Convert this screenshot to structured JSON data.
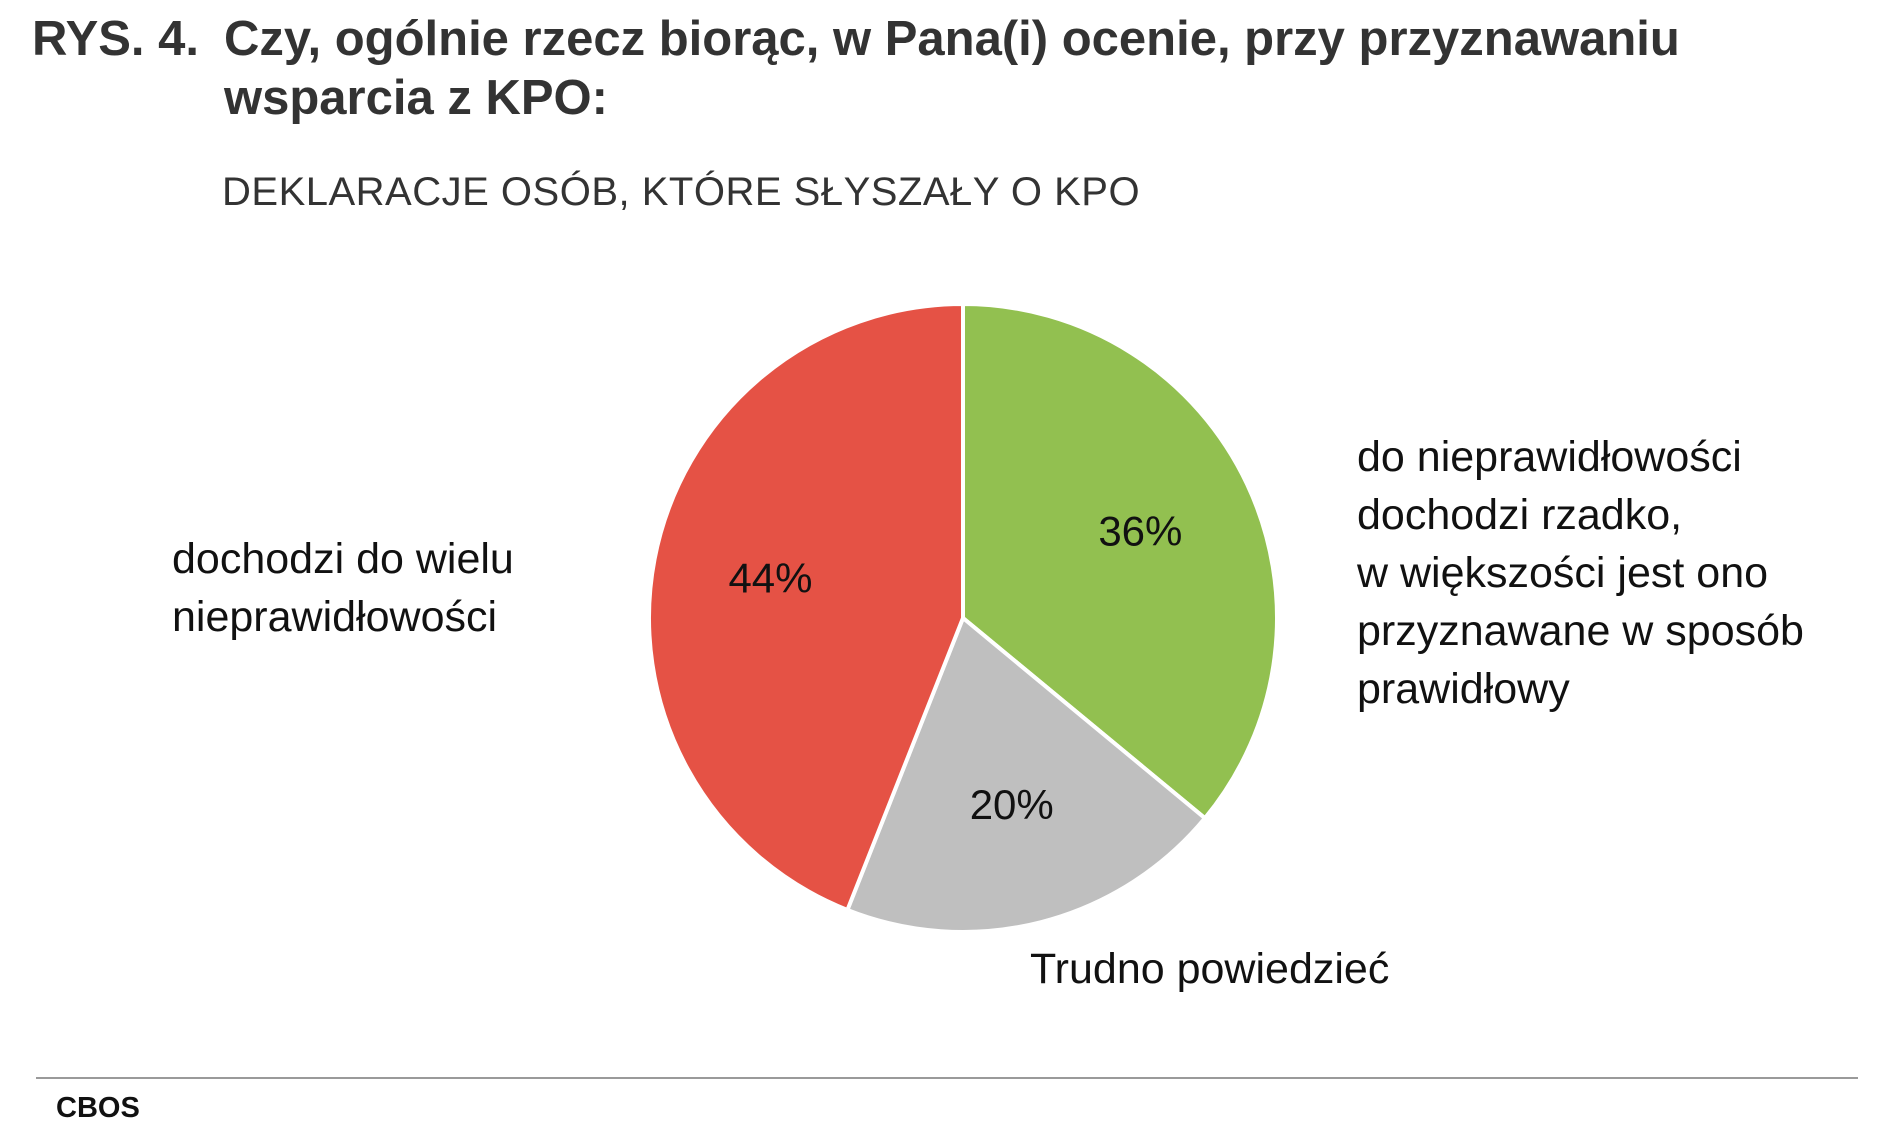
{
  "title": {
    "number": "RYS. 4.",
    "line1": "Czy, ogólnie rzecz biorąc, w Pana(i) ocenie, przy przyznawaniu",
    "line2": "wsparcia z KPO:"
  },
  "subtitle": "DEKLARACJE OSÓB, KTÓRE SŁYSZAŁY O KPO",
  "source": "CBOS",
  "chart_data": {
    "type": "pie",
    "title": "Czy, ogólnie rzecz biorąc, w Pana(i) ocenie, przy przyznawaniu wsparcia z KPO:",
    "subtitle": "DEKLARACJE OSÓB, KTÓRE SŁYSZAŁY O KPO",
    "unit": "%",
    "start": "12 o'clock",
    "direction": "clockwise",
    "slices": [
      {
        "label": "do nieprawidłowości dochodzi rzadko, w większości jest ono przyznawane w sposób prawidłowy",
        "label_lines": [
          "do nieprawidłowości",
          "dochodzi rzadko,",
          "w większości jest ono",
          "przyznawane w sposób",
          "prawidłowy"
        ],
        "value": 36,
        "value_label": "36%",
        "color": "#92c050"
      },
      {
        "label": "Trudno powiedzieć",
        "label_lines": [
          "Trudno powiedzieć"
        ],
        "value": 20,
        "value_label": "20%",
        "color": "#bfbfbf"
      },
      {
        "label": "dochodzi do wielu nieprawidłowości",
        "label_lines": [
          "dochodzi do wielu",
          "nieprawidłowości"
        ],
        "value": 44,
        "value_label": "44%",
        "color": "#e55245"
      }
    ]
  }
}
